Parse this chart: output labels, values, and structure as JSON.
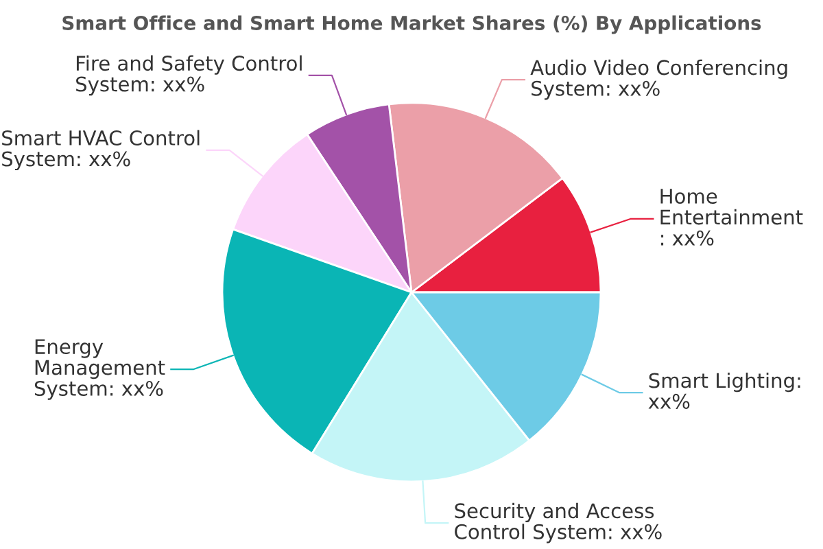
{
  "chart_data": {
    "type": "pie",
    "title": "Smart Office and Smart Home Market Shares (%) By Applications",
    "categories": [
      "Home\nEntertainment\n: xx%",
      "Audio Video Conferencing\nSystem: xx%",
      "Fire and Safety Control\nSystem: xx%",
      "Smart HVAC Control\nSystem: xx%",
      "Energy\nManagement\nSystem: xx%",
      "Security and Access\nControl System: xx%",
      "Smart Lighting:\nxx%"
    ],
    "values": [
      10.3,
      16.6,
      7.4,
      10.3,
      21.6,
      19.5,
      14.3
    ],
    "colors": [
      "#e8203f",
      "#eb9fa8",
      "#a352a8",
      "#fcd5fa",
      "#0ab5b5",
      "#c4f5f7",
      "#6dcbe6"
    ],
    "legend": false
  }
}
